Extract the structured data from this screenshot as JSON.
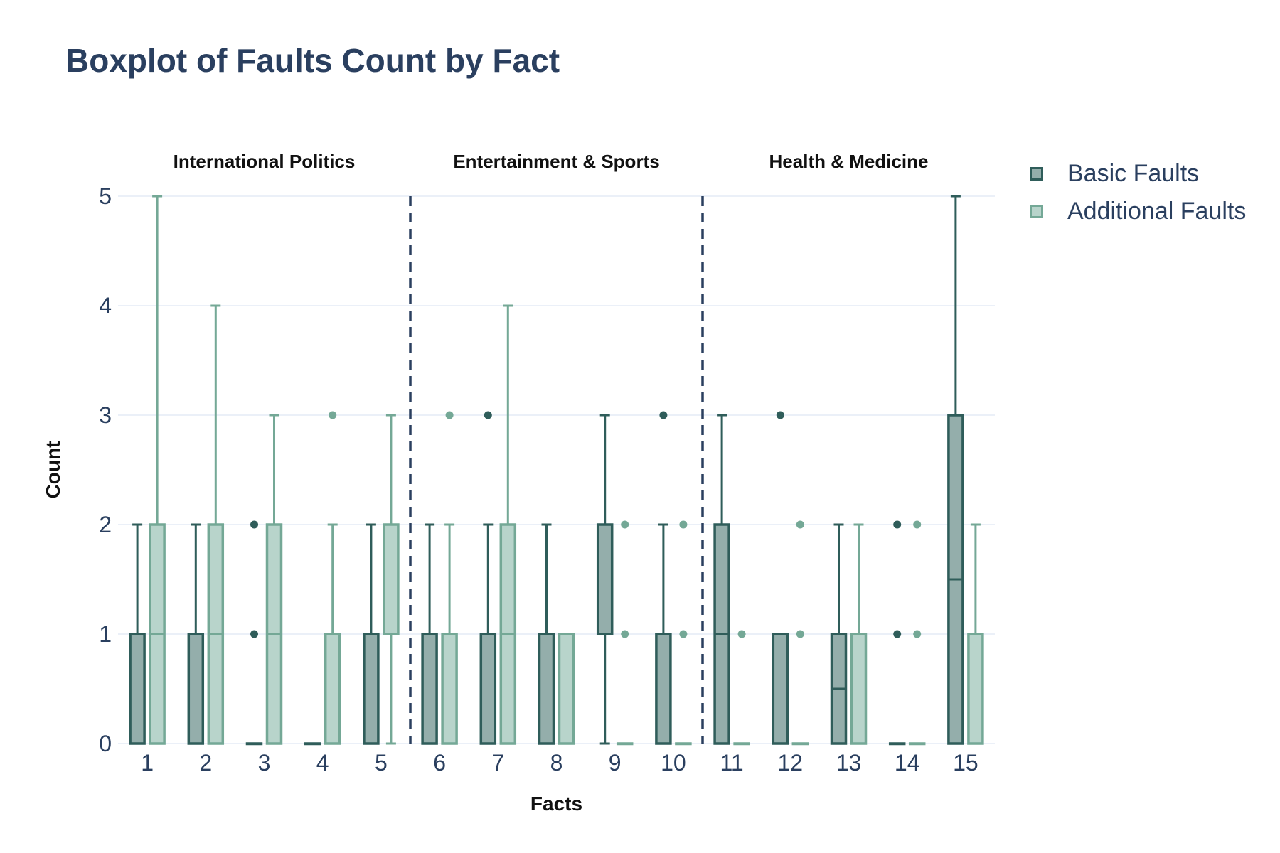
{
  "title": "Boxplot of Faults Count by Fact",
  "chart_data": {
    "type": "box",
    "title": "Boxplot of Faults Count by Fact",
    "xlabel": "Facts",
    "ylabel": "Count",
    "ylim": [
      0,
      5
    ],
    "yticks": [
      0,
      1,
      2,
      3,
      4,
      5
    ],
    "categories": [
      "1",
      "2",
      "3",
      "4",
      "5",
      "6",
      "7",
      "8",
      "9",
      "10",
      "11",
      "12",
      "13",
      "14",
      "15"
    ],
    "groups": [
      {
        "label": "International Politics",
        "facts": [
          "1",
          "2",
          "3",
          "4",
          "5"
        ]
      },
      {
        "label": "Entertainment & Sports",
        "facts": [
          "6",
          "7",
          "8",
          "9",
          "10"
        ]
      },
      {
        "label": "Health & Medicine",
        "facts": [
          "11",
          "12",
          "13",
          "14",
          "15"
        ]
      }
    ],
    "grid": true,
    "legend_position": "top-right",
    "series": [
      {
        "name": "Basic Faults",
        "fill": "#94aeab",
        "line": "#2f5d5a",
        "boxes": [
          {
            "fact": "1",
            "min": 0,
            "q1": 0,
            "median": 0,
            "q3": 1,
            "max": 2,
            "outliers": []
          },
          {
            "fact": "2",
            "min": 0,
            "q1": 0,
            "median": 0,
            "q3": 1,
            "max": 2,
            "outliers": []
          },
          {
            "fact": "3",
            "min": 0,
            "q1": 0,
            "median": 0,
            "q3": 0,
            "max": 0,
            "outliers": [
              1,
              2
            ]
          },
          {
            "fact": "4",
            "min": 0,
            "q1": 0,
            "median": 0,
            "q3": 0,
            "max": 0,
            "outliers": []
          },
          {
            "fact": "5",
            "min": 0,
            "q1": 0,
            "median": 0,
            "q3": 1,
            "max": 2,
            "outliers": []
          },
          {
            "fact": "6",
            "min": 0,
            "q1": 0,
            "median": 0,
            "q3": 1,
            "max": 2,
            "outliers": []
          },
          {
            "fact": "7",
            "min": 0,
            "q1": 0,
            "median": 0,
            "q3": 1,
            "max": 2,
            "outliers": [
              3
            ]
          },
          {
            "fact": "8",
            "min": 0,
            "q1": 0,
            "median": 0,
            "q3": 1,
            "max": 2,
            "outliers": []
          },
          {
            "fact": "9",
            "min": 0,
            "q1": 1,
            "median": 1,
            "q3": 2,
            "max": 3,
            "outliers": []
          },
          {
            "fact": "10",
            "min": 0,
            "q1": 0,
            "median": 0,
            "q3": 1,
            "max": 2,
            "outliers": [
              3
            ]
          },
          {
            "fact": "11",
            "min": 0,
            "q1": 0,
            "median": 1,
            "q3": 2,
            "max": 3,
            "outliers": []
          },
          {
            "fact": "12",
            "min": 0,
            "q1": 0,
            "median": 0,
            "q3": 1,
            "max": 1,
            "outliers": [
              3
            ]
          },
          {
            "fact": "13",
            "min": 0,
            "q1": 0,
            "median": 0.5,
            "q3": 1,
            "max": 2,
            "outliers": []
          },
          {
            "fact": "14",
            "min": 0,
            "q1": 0,
            "median": 0,
            "q3": 0,
            "max": 0,
            "outliers": [
              1,
              2
            ]
          },
          {
            "fact": "15",
            "min": 0,
            "q1": 0,
            "median": 1.5,
            "q3": 3,
            "max": 5,
            "outliers": []
          }
        ]
      },
      {
        "name": "Additional Faults",
        "fill": "#b8d4cb",
        "line": "#74a896",
        "boxes": [
          {
            "fact": "1",
            "min": 0,
            "q1": 0,
            "median": 1,
            "q3": 2,
            "max": 5,
            "outliers": []
          },
          {
            "fact": "2",
            "min": 0,
            "q1": 0,
            "median": 1,
            "q3": 2,
            "max": 4,
            "outliers": []
          },
          {
            "fact": "3",
            "min": 0,
            "q1": 0,
            "median": 1,
            "q3": 2,
            "max": 3,
            "outliers": []
          },
          {
            "fact": "4",
            "min": 0,
            "q1": 0,
            "median": 0,
            "q3": 1,
            "max": 2,
            "outliers": [
              3
            ]
          },
          {
            "fact": "5",
            "min": 0,
            "q1": 1,
            "median": 1,
            "q3": 2,
            "max": 3,
            "outliers": []
          },
          {
            "fact": "6",
            "min": 0,
            "q1": 0,
            "median": 0,
            "q3": 1,
            "max": 2,
            "outliers": [
              3
            ]
          },
          {
            "fact": "7",
            "min": 0,
            "q1": 0,
            "median": 1,
            "q3": 2,
            "max": 4,
            "outliers": []
          },
          {
            "fact": "8",
            "min": 0,
            "q1": 0,
            "median": 0,
            "q3": 1,
            "max": 1,
            "outliers": []
          },
          {
            "fact": "9",
            "min": 0,
            "q1": 0,
            "median": 0,
            "q3": 0,
            "max": 0,
            "outliers": [
              1,
              2
            ]
          },
          {
            "fact": "10",
            "min": 0,
            "q1": 0,
            "median": 0,
            "q3": 0,
            "max": 0,
            "outliers": [
              1,
              2
            ]
          },
          {
            "fact": "11",
            "min": 0,
            "q1": 0,
            "median": 0,
            "q3": 0,
            "max": 0,
            "outliers": [
              1
            ]
          },
          {
            "fact": "12",
            "min": 0,
            "q1": 0,
            "median": 0,
            "q3": 0,
            "max": 0,
            "outliers": [
              1,
              2
            ]
          },
          {
            "fact": "13",
            "min": 0,
            "q1": 0,
            "median": 0,
            "q3": 1,
            "max": 2,
            "outliers": []
          },
          {
            "fact": "14",
            "min": 0,
            "q1": 0,
            "median": 0,
            "q3": 0,
            "max": 0,
            "outliers": [
              1,
              2
            ]
          },
          {
            "fact": "15",
            "min": 0,
            "q1": 0,
            "median": 0,
            "q3": 1,
            "max": 2,
            "outliers": []
          }
        ]
      }
    ]
  }
}
